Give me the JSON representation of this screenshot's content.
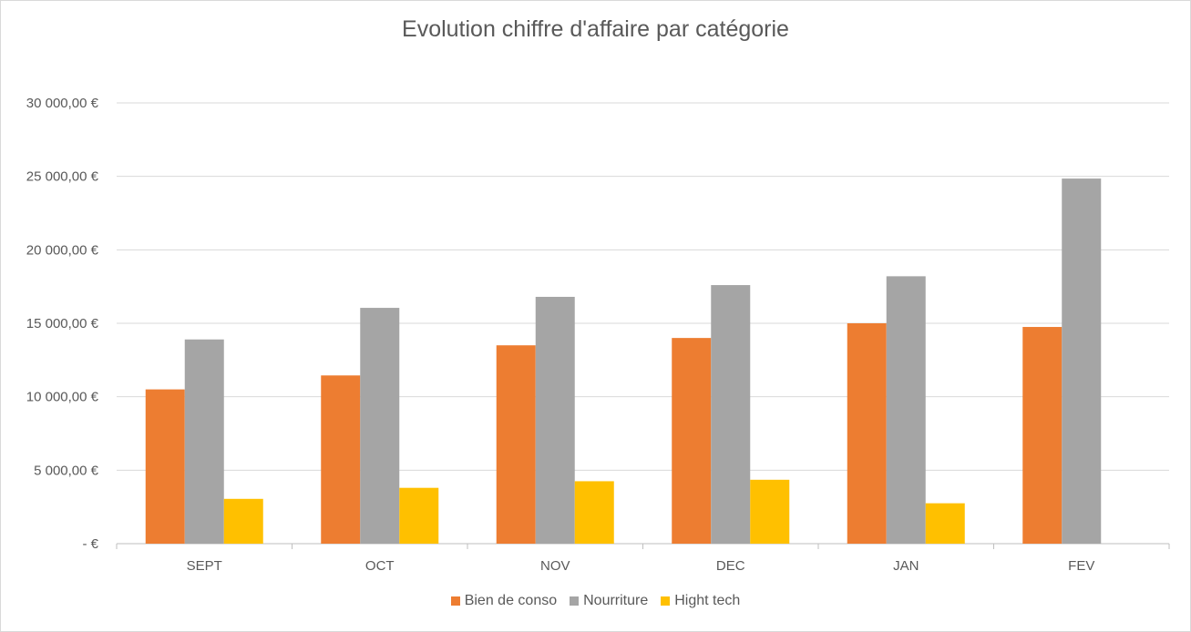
{
  "chart_data": {
    "type": "bar",
    "title": "Evolution chiffre d'affaire par catégorie",
    "categories": [
      "SEPT",
      "OCT",
      "NOV",
      "DEC",
      "JAN",
      "FEV"
    ],
    "series": [
      {
        "name": "Bien de conso",
        "color": "#ED7D31",
        "values": [
          10500,
          11450,
          13500,
          14000,
          15000,
          14750
        ]
      },
      {
        "name": "Nourriture",
        "color": "#A5A5A5",
        "values": [
          13900,
          16050,
          16800,
          17600,
          18200,
          24850
        ]
      },
      {
        "name": "Hight tech",
        "color": "#FFC000",
        "values": [
          3050,
          3800,
          4250,
          4350,
          2750,
          0
        ]
      }
    ],
    "ylim": [
      0,
      30000
    ],
    "yticks": [
      0,
      5000,
      10000,
      15000,
      20000,
      25000,
      30000
    ],
    "ytick_labels": [
      "-  €",
      "5 000,00 €",
      "10 000,00 €",
      "15 000,00 €",
      "20 000,00 €",
      "25 000,00 €",
      "30 000,00 €"
    ],
    "xlabel": "",
    "ylabel": "",
    "grid": true,
    "legend_position": "bottom"
  }
}
